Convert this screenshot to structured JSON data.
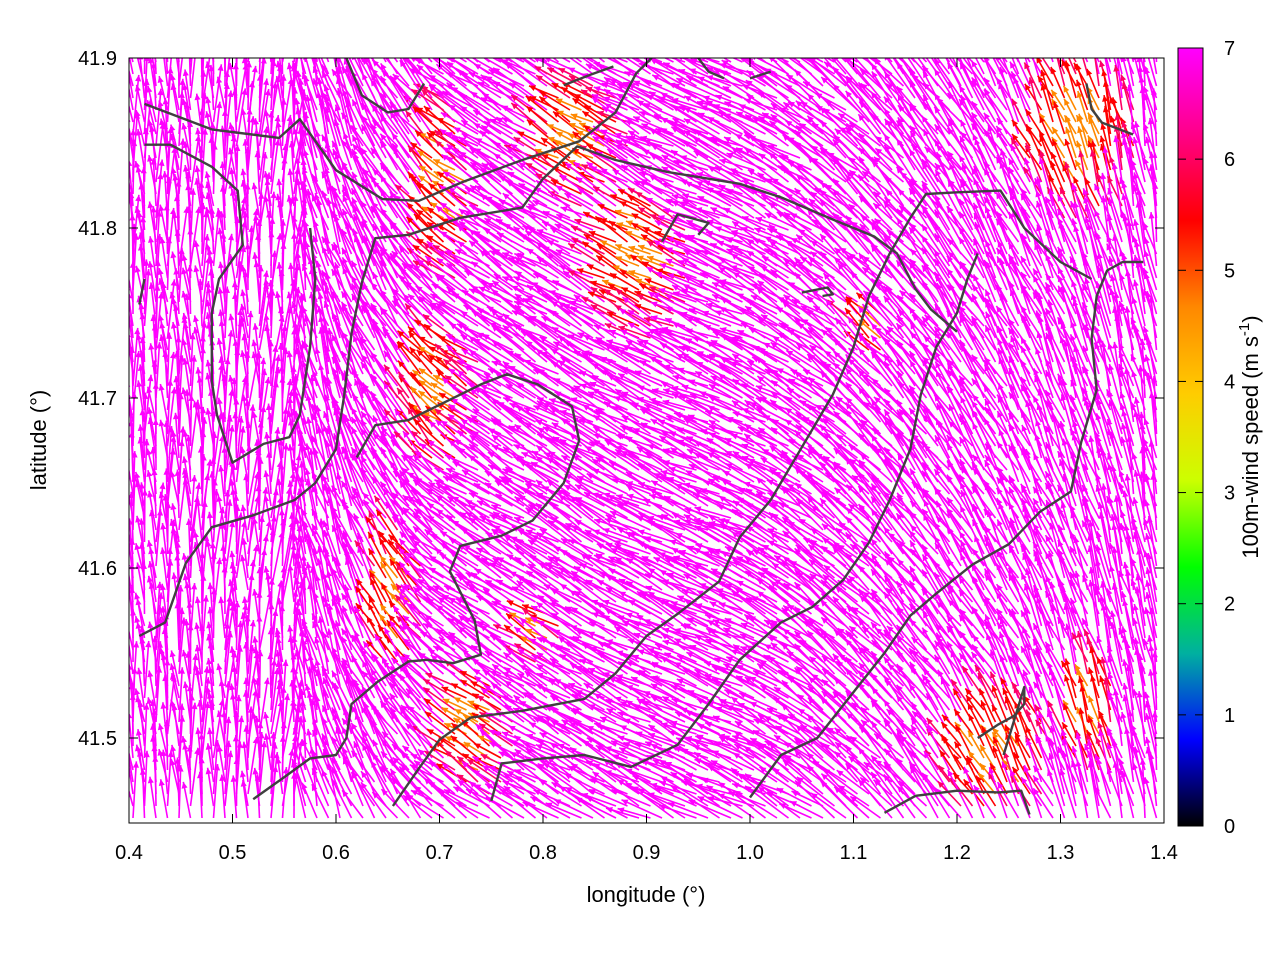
{
  "chart_data": {
    "type": "vector-field",
    "xlabel": "longitude (°)",
    "ylabel": "latitude (°)",
    "xlim": [
      0.4,
      1.4
    ],
    "ylim": [
      41.45,
      41.9
    ],
    "xticks": [
      "0.4",
      "0.5",
      "0.6",
      "0.7",
      "0.8",
      "0.9",
      "1.0",
      "1.1",
      "1.2",
      "1.3",
      "1.4"
    ],
    "yticks": [
      "41.5",
      "41.6",
      "41.7",
      "41.8",
      "41.9"
    ],
    "colorbar": {
      "label_main": "100m-wind speed (m s",
      "label_sup": "-1",
      "label_end": ")",
      "range": [
        0,
        7
      ],
      "ticks": [
        "0",
        "1",
        "2",
        "3",
        "4",
        "5",
        "6",
        "7"
      ],
      "colors": [
        "#000000",
        "#0000ff",
        "#00b0a0",
        "#00ff00",
        "#ccff00",
        "#ffcc00",
        "#ff8800",
        "#ff0000",
        "#ff0088",
        "#ff00ff"
      ]
    },
    "vector_color_dominant": "#ff00ff",
    "coastline_color": "#404040",
    "contour_lines": [
      [
        [
          0.415,
          41.873
        ],
        [
          0.48,
          41.858
        ],
        [
          0.545,
          41.853
        ],
        [
          0.565,
          41.864
        ],
        [
          0.6,
          41.834
        ],
        [
          0.645,
          41.817
        ],
        [
          0.68,
          41.816
        ],
        [
          0.722,
          41.827
        ],
        [
          0.78,
          41.84
        ],
        [
          0.835,
          41.851
        ],
        [
          0.87,
          41.868
        ],
        [
          0.89,
          41.891
        ],
        [
          0.905,
          41.9
        ]
      ],
      [
        [
          0.415,
          41.849
        ],
        [
          0.44,
          41.849
        ],
        [
          0.48,
          41.836
        ],
        [
          0.505,
          41.822
        ],
        [
          0.51,
          41.79
        ],
        [
          0.487,
          41.77
        ],
        [
          0.48,
          41.75
        ],
        [
          0.48,
          41.71
        ],
        [
          0.485,
          41.69
        ],
        [
          0.5,
          41.662
        ],
        [
          0.53,
          41.673
        ],
        [
          0.555,
          41.677
        ],
        [
          0.565,
          41.69
        ],
        [
          0.575,
          41.73
        ],
        [
          0.58,
          41.77
        ],
        [
          0.575,
          41.8
        ]
      ],
      [
        [
          0.41,
          41.56
        ],
        [
          0.435,
          41.568
        ],
        [
          0.455,
          41.603
        ],
        [
          0.48,
          41.624
        ],
        [
          0.52,
          41.631
        ],
        [
          0.56,
          41.64
        ],
        [
          0.58,
          41.65
        ],
        [
          0.6,
          41.67
        ],
        [
          0.608,
          41.702
        ],
        [
          0.615,
          41.738
        ],
        [
          0.625,
          41.768
        ],
        [
          0.638,
          41.794
        ],
        [
          0.67,
          41.796
        ],
        [
          0.72,
          41.806
        ],
        [
          0.78,
          41.812
        ],
        [
          0.8,
          41.829
        ],
        [
          0.833,
          41.848
        ],
        [
          0.87,
          41.84
        ],
        [
          0.92,
          41.833
        ],
        [
          0.99,
          41.826
        ],
        [
          1.03,
          41.818
        ],
        [
          1.08,
          41.805
        ],
        [
          1.12,
          41.795
        ],
        [
          1.142,
          41.785
        ],
        [
          1.16,
          41.764
        ],
        [
          1.175,
          41.752
        ],
        [
          1.2,
          41.739
        ]
      ],
      [
        [
          0.52,
          41.464
        ],
        [
          0.55,
          41.477
        ],
        [
          0.575,
          41.488
        ],
        [
          0.6,
          41.49
        ],
        [
          0.61,
          41.5
        ],
        [
          0.615,
          41.52
        ],
        [
          0.64,
          41.533
        ],
        [
          0.67,
          41.545
        ],
        [
          0.688,
          41.546
        ],
        [
          0.713,
          41.544
        ],
        [
          0.74,
          41.549
        ],
        [
          0.734,
          41.569
        ],
        [
          0.72,
          41.586
        ],
        [
          0.71,
          41.598
        ],
        [
          0.72,
          41.613
        ],
        [
          0.76,
          41.619
        ],
        [
          0.79,
          41.628
        ],
        [
          0.82,
          41.65
        ],
        [
          0.835,
          41.675
        ],
        [
          0.828,
          41.695
        ],
        [
          0.795,
          41.708
        ],
        [
          0.765,
          41.714
        ],
        [
          0.74,
          41.708
        ],
        [
          0.7,
          41.696
        ],
        [
          0.67,
          41.687
        ],
        [
          0.638,
          41.684
        ],
        [
          0.62,
          41.665
        ]
      ],
      [
        [
          0.655,
          41.46
        ],
        [
          0.68,
          41.482
        ],
        [
          0.7,
          41.499
        ],
        [
          0.73,
          41.512
        ],
        [
          0.78,
          41.516
        ],
        [
          0.84,
          41.523
        ],
        [
          0.87,
          41.538
        ],
        [
          0.9,
          41.56
        ],
        [
          0.93,
          41.573
        ],
        [
          0.97,
          41.592
        ],
        [
          0.99,
          41.618
        ],
        [
          1.02,
          41.64
        ],
        [
          1.05,
          41.671
        ],
        [
          1.08,
          41.702
        ],
        [
          1.1,
          41.73
        ],
        [
          1.115,
          41.76
        ],
        [
          1.135,
          41.785
        ],
        [
          1.155,
          41.806
        ],
        [
          1.17,
          41.82
        ],
        [
          1.2,
          41.821
        ],
        [
          1.242,
          41.822
        ],
        [
          1.265,
          41.8
        ],
        [
          1.3,
          41.78
        ],
        [
          1.33,
          41.77
        ]
      ],
      [
        [
          0.75,
          41.463
        ],
        [
          0.76,
          41.485
        ],
        [
          0.8,
          41.488
        ],
        [
          0.84,
          41.49
        ],
        [
          0.885,
          41.483
        ],
        [
          0.93,
          41.496
        ],
        [
          0.96,
          41.52
        ],
        [
          0.99,
          41.546
        ],
        [
          1.03,
          41.568
        ],
        [
          1.06,
          41.577
        ],
        [
          1.09,
          41.593
        ],
        [
          1.115,
          41.615
        ],
        [
          1.135,
          41.64
        ],
        [
          1.155,
          41.67
        ],
        [
          1.165,
          41.702
        ],
        [
          1.18,
          41.73
        ],
        [
          1.2,
          41.75
        ],
        [
          1.21,
          41.77
        ],
        [
          1.22,
          41.785
        ]
      ],
      [
        [
          1.0,
          41.465
        ],
        [
          1.03,
          41.49
        ],
        [
          1.065,
          41.5
        ],
        [
          1.1,
          41.527
        ],
        [
          1.13,
          41.55
        ],
        [
          1.155,
          41.572
        ],
        [
          1.18,
          41.585
        ],
        [
          1.215,
          41.602
        ],
        [
          1.25,
          41.614
        ],
        [
          1.28,
          41.633
        ],
        [
          1.31,
          41.645
        ],
        [
          1.32,
          41.674
        ],
        [
          1.335,
          41.705
        ],
        [
          1.33,
          41.735
        ],
        [
          1.335,
          41.76
        ],
        [
          1.345,
          41.775
        ],
        [
          1.36,
          41.78
        ],
        [
          1.38,
          41.78
        ]
      ],
      [
        [
          1.22,
          41.5
        ],
        [
          1.24,
          41.508
        ],
        [
          1.255,
          41.513
        ],
        [
          1.265,
          41.52
        ],
        [
          1.265,
          41.53
        ],
        [
          1.26,
          41.52
        ],
        [
          1.245,
          41.49
        ]
      ],
      [
        [
          1.13,
          41.456
        ],
        [
          1.16,
          41.466
        ],
        [
          1.2,
          41.469
        ],
        [
          1.24,
          41.468
        ],
        [
          1.262,
          41.469
        ],
        [
          1.27,
          41.455
        ]
      ],
      [
        [
          0.915,
          41.792
        ],
        [
          0.93,
          41.808
        ],
        [
          0.96,
          41.803
        ],
        [
          0.95,
          41.796
        ]
      ],
      [
        [
          1.05,
          41.762
        ],
        [
          1.075,
          41.765
        ],
        [
          1.08,
          41.761
        ],
        [
          1.07,
          41.76
        ]
      ],
      [
        [
          0.41,
          41.755
        ],
        [
          0.415,
          41.77
        ]
      ],
      [
        [
          0.61,
          41.9
        ],
        [
          0.625,
          41.878
        ],
        [
          0.65,
          41.868
        ],
        [
          0.67,
          41.87
        ],
        [
          0.685,
          41.885
        ]
      ],
      [
        [
          0.82,
          41.884
        ],
        [
          0.845,
          41.89
        ],
        [
          0.868,
          41.895
        ]
      ],
      [
        [
          0.95,
          41.9
        ],
        [
          0.96,
          41.892
        ],
        [
          0.975,
          41.888
        ]
      ],
      [
        [
          1.0,
          41.888
        ],
        [
          1.02,
          41.892
        ]
      ],
      [
        [
          1.325,
          41.885
        ],
        [
          1.33,
          41.87
        ],
        [
          1.34,
          41.862
        ],
        [
          1.37,
          41.855
        ]
      ]
    ],
    "low_speed_zones": [
      {
        "lon": 0.705,
        "lat": 41.7,
        "rx": 0.04,
        "ry": 0.05
      },
      {
        "lon": 0.71,
        "lat": 41.82,
        "rx": 0.03,
        "ry": 0.06
      },
      {
        "lon": 0.84,
        "lat": 41.85,
        "rx": 0.05,
        "ry": 0.04
      },
      {
        "lon": 0.9,
        "lat": 41.78,
        "rx": 0.05,
        "ry": 0.05
      },
      {
        "lon": 0.66,
        "lat": 41.58,
        "rx": 0.03,
        "ry": 0.05
      },
      {
        "lon": 0.74,
        "lat": 41.5,
        "rx": 0.04,
        "ry": 0.04
      },
      {
        "lon": 1.24,
        "lat": 41.49,
        "rx": 0.06,
        "ry": 0.04
      },
      {
        "lon": 1.33,
        "lat": 41.51,
        "rx": 0.03,
        "ry": 0.04
      },
      {
        "lon": 1.32,
        "lat": 41.85,
        "rx": 0.06,
        "ry": 0.05
      },
      {
        "lon": 1.12,
        "lat": 41.74,
        "rx": 0.02,
        "ry": 0.02
      },
      {
        "lon": 0.8,
        "lat": 41.56,
        "rx": 0.02,
        "ry": 0.02
      }
    ]
  }
}
